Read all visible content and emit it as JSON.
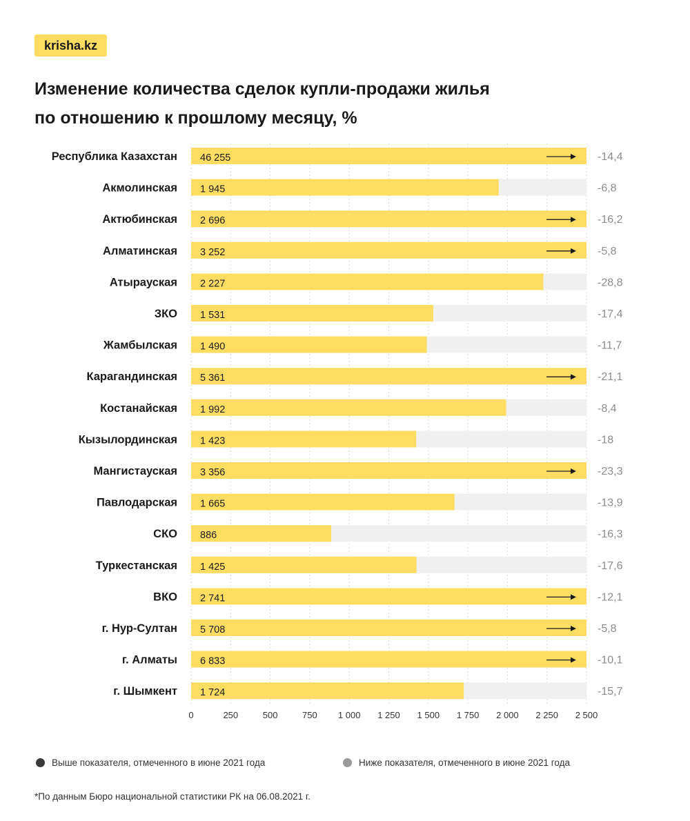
{
  "brand": "krisha.kz",
  "title_line1": "Изменение количества сделок купли-продажи жилья",
  "title_line2": "по отношению к прошлому месяцу, %",
  "colors": {
    "bar": "#ffdd63",
    "track": "#f0f0f1",
    "grid": "#dcdcdc",
    "change_text": "#8c8c8c",
    "legend_above": "#3a3a3a",
    "legend_below": "#9a9a9a"
  },
  "legend": {
    "above": "Выше показателя, отмеченного в июне 2021 года",
    "below": "Ниже показателя, отмеченного в июне 2021 года"
  },
  "footnote": "*По данным Бюро национальной статистики РК на 06.08.2021 г.",
  "chart_data": {
    "type": "bar",
    "orientation": "horizontal",
    "xlim": [
      0,
      2500
    ],
    "x_ticks": [
      0,
      250,
      500,
      750,
      1000,
      1250,
      1500,
      1750,
      2000,
      2250,
      2500
    ],
    "x_tick_labels": [
      "0",
      "250",
      "500",
      "750",
      "1 000",
      "1 250",
      "1 500",
      "1 750",
      "2 000",
      "2 250",
      "2 500"
    ],
    "grid": true,
    "categories": [
      "Республика Казахстан",
      "Акмолинская",
      "Актюбинская",
      "Алматинская",
      "Атырауская",
      "ЗКО",
      "Жамбылская",
      "Карагандинская",
      "Костанайская",
      "Кызылординская",
      "Мангистауская",
      "Павлодарская",
      "СКО",
      "Туркестанская",
      "ВКО",
      "г. Нур-Султан",
      "г. Алматы",
      "г. Шымкент"
    ],
    "values": [
      46255,
      1945,
      2696,
      3252,
      2227,
      1531,
      1490,
      5361,
      1992,
      1423,
      3356,
      1665,
      886,
      1425,
      2741,
      5708,
      6833,
      1724
    ],
    "value_labels": [
      "46 255",
      "1 945",
      "2 696",
      "3 252",
      "2 227",
      "1 531",
      "1 490",
      "5 361",
      "1 992",
      "1 423",
      "3 356",
      "1 665",
      "886",
      "1 425",
      "2 741",
      "5 708",
      "6 833",
      "1 724"
    ],
    "change_pct": [
      "-14,4",
      "-6,8",
      "-16,2",
      "-5,8",
      "-28,8",
      "-17,4",
      "-11,7",
      "-21,1",
      "-8,4",
      "-18",
      "-23,3",
      "-13,9",
      "-16,3",
      "-17,6",
      "-12,1",
      "-5,8",
      "-10,1",
      "-15,7"
    ]
  }
}
